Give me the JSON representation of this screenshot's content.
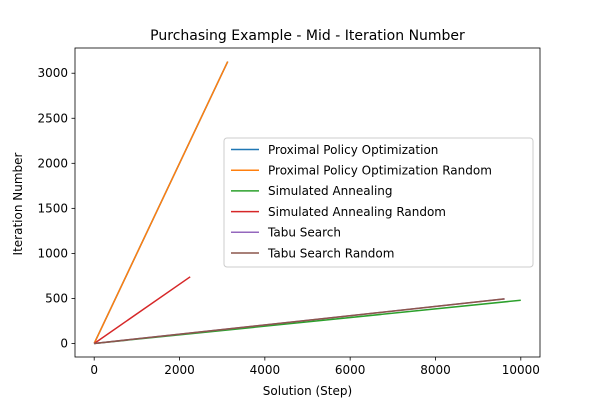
{
  "chart_data": {
    "type": "line",
    "title": "Purchasing Example - Mid - Iteration Number",
    "xlabel": "Solution (Step)",
    "ylabel": "Iteration Number",
    "xlim": [
      -450,
      10450
    ],
    "ylim": [
      -150,
      3280
    ],
    "xticks": [
      0,
      2000,
      4000,
      6000,
      8000,
      10000
    ],
    "yticks": [
      0,
      500,
      1000,
      1500,
      2000,
      2500,
      3000
    ],
    "grid": false,
    "legend_position": "center-right",
    "series": [
      {
        "name": "Proximal Policy Optimization",
        "color": "#1f77b4",
        "x": [
          0,
          3130
        ],
        "y": [
          0,
          3130
        ]
      },
      {
        "name": "Proximal Policy Optimization Random",
        "color": "#ff7f0e",
        "x": [
          0,
          3130
        ],
        "y": [
          0,
          3130
        ]
      },
      {
        "name": "Simulated Annealing",
        "color": "#2ca02c",
        "x": [
          0,
          10000
        ],
        "y": [
          0,
          480
        ]
      },
      {
        "name": "Simulated Annealing Random",
        "color": "#d62728",
        "x": [
          0,
          2250
        ],
        "y": [
          0,
          740
        ]
      },
      {
        "name": "Tabu Search",
        "color": "#9467bd",
        "x": [
          0,
          9620
        ],
        "y": [
          0,
          495
        ]
      },
      {
        "name": "Tabu Search Random",
        "color": "#8c564b",
        "x": [
          0,
          9620
        ],
        "y": [
          0,
          495
        ]
      }
    ]
  }
}
